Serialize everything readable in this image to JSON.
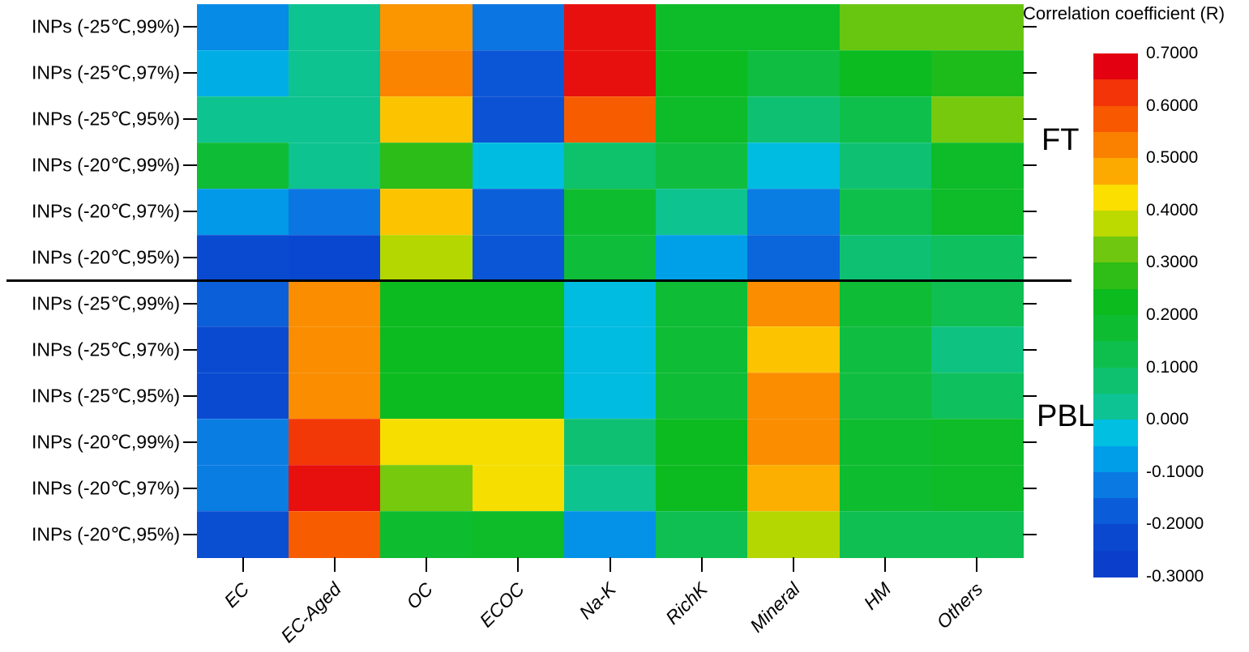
{
  "chart_data": {
    "type": "heatmap",
    "legend_title": "Correlation coefficient (R)",
    "columns": [
      "EC",
      "EC-Aged",
      "OC",
      "ECOC",
      "Na-K",
      "RichK",
      "Mineral",
      "HM",
      "Others"
    ],
    "row_labels": [
      "INPs (-25℃,99%)",
      "INPs (-25℃,97%)",
      "INPs (-25℃,95%)",
      "INPs (-20℃,99%)",
      "INPs (-20℃,97%)",
      "INPs (-20℃,95%)"
    ],
    "panels": [
      {
        "label": "FT",
        "values": [
          [
            -0.1,
            0.03,
            0.5,
            -0.13,
            0.66,
            0.2,
            0.2,
            0.32,
            0.32
          ],
          [
            -0.05,
            0.03,
            0.52,
            -0.19,
            0.66,
            0.22,
            0.15,
            0.22,
            0.25
          ],
          [
            0.03,
            0.03,
            0.45,
            -0.2,
            0.57,
            0.2,
            0.07,
            0.13,
            0.33
          ],
          [
            0.17,
            0.03,
            0.27,
            -0.03,
            0.08,
            0.15,
            -0.03,
            0.07,
            0.2
          ],
          [
            -0.08,
            -0.13,
            0.45,
            -0.17,
            0.18,
            0.03,
            -0.12,
            0.13,
            0.2
          ],
          [
            -0.22,
            -0.23,
            0.37,
            -0.19,
            0.16,
            -0.07,
            -0.16,
            0.07,
            0.1
          ]
        ]
      },
      {
        "label": "PBL",
        "values": [
          [
            -0.17,
            0.51,
            0.22,
            0.22,
            -0.03,
            0.17,
            0.51,
            0.17,
            0.12
          ],
          [
            -0.22,
            0.51,
            0.22,
            0.22,
            -0.03,
            0.17,
            0.45,
            0.15,
            0.05
          ],
          [
            -0.22,
            0.51,
            0.22,
            0.22,
            -0.03,
            0.17,
            0.51,
            0.15,
            0.1
          ],
          [
            -0.12,
            0.62,
            0.42,
            0.42,
            0.07,
            0.22,
            0.51,
            0.18,
            0.2
          ],
          [
            -0.12,
            0.66,
            0.33,
            0.42,
            0.03,
            0.22,
            0.47,
            0.18,
            0.2
          ],
          [
            -0.21,
            0.57,
            0.18,
            0.2,
            -0.09,
            0.12,
            0.37,
            0.12,
            0.12
          ]
        ]
      }
    ],
    "value_range": [
      -0.3,
      0.7
    ],
    "colorbar_ticks": [
      "0.7000",
      "0.6000",
      "0.5000",
      "0.4000",
      "0.3000",
      "0.2000",
      "0.1000",
      "0.000",
      "-0.1000",
      "-0.2000",
      "-0.3000"
    ],
    "colormap_stops": [
      {
        "v": -0.275,
        "c": "#0a3ecb"
      },
      {
        "v": -0.225,
        "c": "#0a48d0"
      },
      {
        "v": -0.175,
        "c": "#0b5cd8"
      },
      {
        "v": -0.125,
        "c": "#0b79e2"
      },
      {
        "v": -0.075,
        "c": "#009de9"
      },
      {
        "v": -0.025,
        "c": "#00bfe0"
      },
      {
        "v": 0.025,
        "c": "#0dc394"
      },
      {
        "v": 0.075,
        "c": "#0ec16e"
      },
      {
        "v": 0.125,
        "c": "#0fbf4e"
      },
      {
        "v": 0.175,
        "c": "#0ebc32"
      },
      {
        "v": 0.225,
        "c": "#0cbb1e"
      },
      {
        "v": 0.275,
        "c": "#2fbd17"
      },
      {
        "v": 0.325,
        "c": "#6fc70f"
      },
      {
        "v": 0.375,
        "c": "#bcd900"
      },
      {
        "v": 0.425,
        "c": "#fbdf00"
      },
      {
        "v": 0.475,
        "c": "#fcaa00"
      },
      {
        "v": 0.525,
        "c": "#fa8000"
      },
      {
        "v": 0.575,
        "c": "#f85800"
      },
      {
        "v": 0.625,
        "c": "#f23408"
      },
      {
        "v": 0.675,
        "c": "#e30010"
      }
    ]
  }
}
